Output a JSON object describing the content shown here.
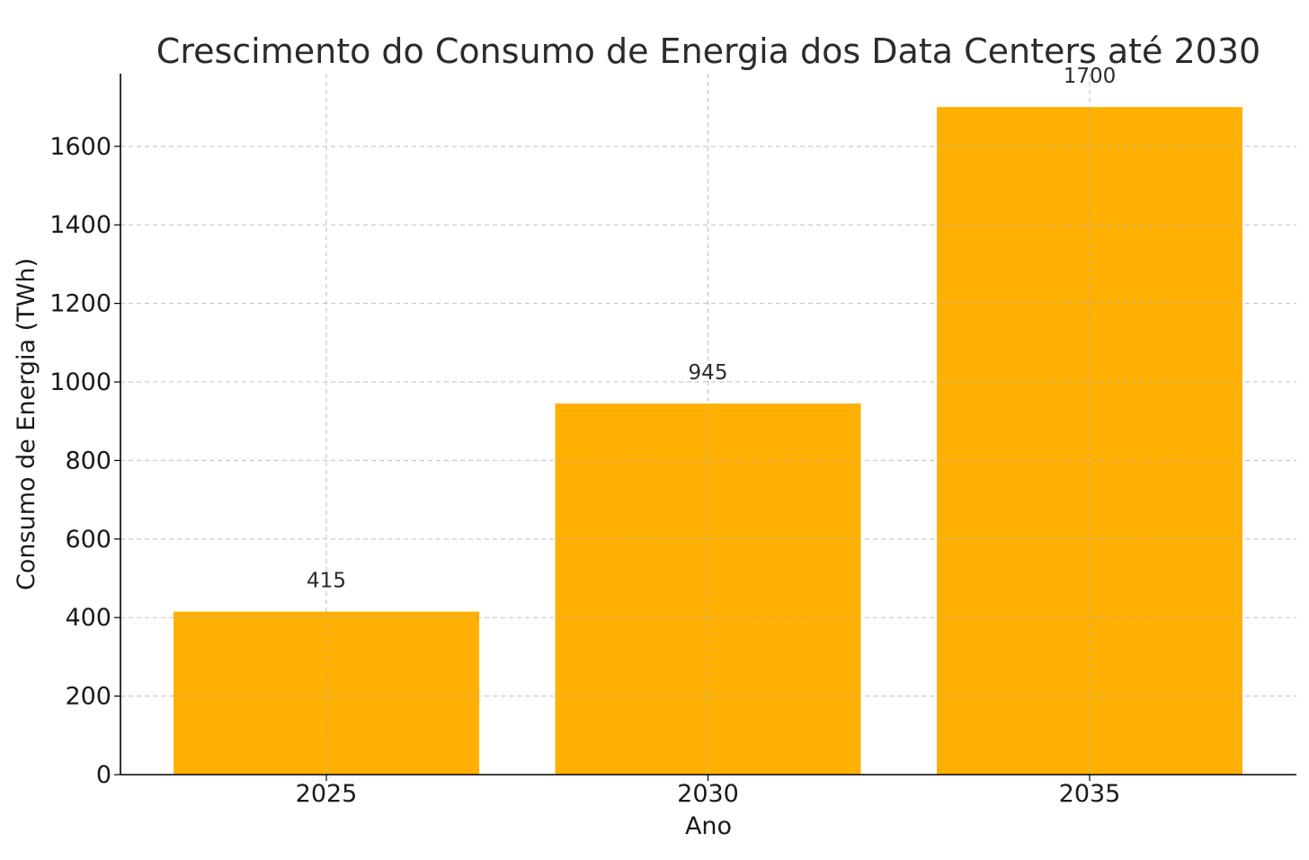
{
  "chart_data": {
    "type": "bar",
    "title": "Crescimento do Consumo de Energia dos Data Centers até 2030",
    "xlabel": "Ano",
    "ylabel": "Consumo de Energia (TWh)",
    "categories": [
      "2025",
      "2030",
      "2035"
    ],
    "values": [
      415,
      945,
      1700
    ],
    "data_labels": [
      "415",
      "945",
      "1700"
    ],
    "ylim": [
      0,
      1785
    ],
    "yticks": [
      0,
      200,
      400,
      600,
      800,
      1000,
      1200,
      1400,
      1600
    ],
    "grid": true,
    "bar_color": "#FFB000"
  }
}
